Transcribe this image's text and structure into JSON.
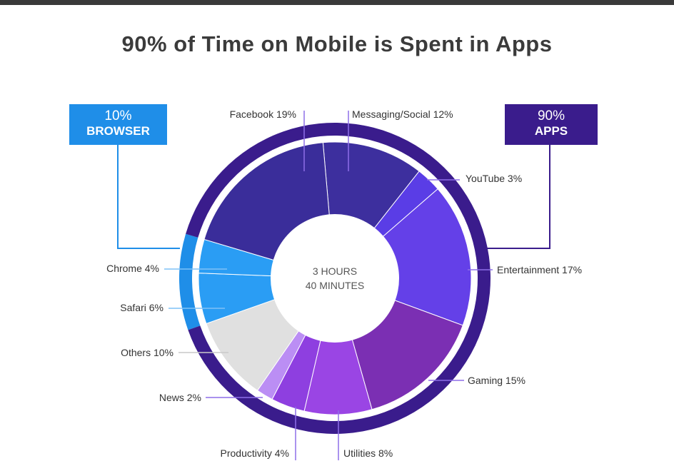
{
  "chart_data": {
    "type": "pie",
    "title": "90% of Time on Mobile is Spent in Apps",
    "center_label": [
      "3 HOURS",
      "40 MINUTES"
    ],
    "slices": [
      {
        "name": "Messaging/Social",
        "value": 12,
        "label": "Messaging/Social 12%",
        "color": "#3d2f9e"
      },
      {
        "name": "YouTube",
        "value": 3,
        "label": "YouTube 3%",
        "color": "#5a3de6"
      },
      {
        "name": "Entertainment",
        "value": 17,
        "label": "Entertainment 17%",
        "color": "#6440e8"
      },
      {
        "name": "Gaming",
        "value": 15,
        "label": "Gaming 15%",
        "color": "#7b2fb3"
      },
      {
        "name": "Utilities",
        "value": 8,
        "label": "Utilities 8%",
        "color": "#9a45e4"
      },
      {
        "name": "Productivity",
        "value": 4,
        "label": "Productivity 4%",
        "color": "#8e3fe0"
      },
      {
        "name": "News",
        "value": 2,
        "label": "News 2%",
        "color": "#bb8ef4"
      },
      {
        "name": "Others",
        "value": 10,
        "label": "Others 10%",
        "color": "#e0e0e0"
      },
      {
        "name": "Safari",
        "value": 6,
        "label": "Safari 6%",
        "color": "#2a9df4"
      },
      {
        "name": "Chrome",
        "value": 4,
        "label": "Chrome 4%",
        "color": "#2a9df4"
      },
      {
        "name": "Facebook",
        "value": 19,
        "label": "Facebook 19%",
        "color": "#3a2d9a"
      }
    ],
    "groups": [
      {
        "name": "BROWSER",
        "value_label": "10%",
        "members": [
          "Safari",
          "Chrome"
        ],
        "color": "#1f8ee8"
      },
      {
        "name": "APPS",
        "value_label": "90%",
        "members": [
          "Messaging/Social",
          "YouTube",
          "Entertainment",
          "Gaming",
          "Utilities",
          "Productivity",
          "News",
          "Others",
          "Facebook"
        ],
        "color": "#3a1c8c"
      }
    ]
  }
}
